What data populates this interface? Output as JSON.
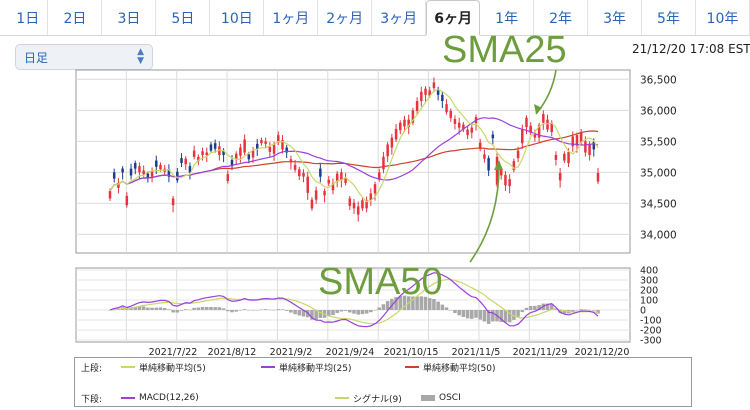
{
  "tabs": [
    {
      "label": "1日"
    },
    {
      "label": "2日"
    },
    {
      "label": "3日"
    },
    {
      "label": "5日"
    },
    {
      "label": "10日"
    },
    {
      "label": "1ヶ月"
    },
    {
      "label": "2ヶ月"
    },
    {
      "label": "3ヶ月"
    },
    {
      "label": "6ヶ月",
      "active": true
    },
    {
      "label": "1年"
    },
    {
      "label": "2年"
    },
    {
      "label": "3年"
    },
    {
      "label": "5年"
    },
    {
      "label": "10年"
    }
  ],
  "period_select": {
    "value": "日足",
    "icon": "chevron-updown-icon"
  },
  "timestamp": "21/12/20 17:08 EST",
  "annotations": {
    "sma25": "SMA25",
    "sma50": "SMA50",
    "color": "#6e9d3e"
  },
  "colors": {
    "up": "#e8323c",
    "down": "#1c3c8c",
    "sma5": "#c8d86a",
    "sma25": "#9b40d9",
    "sma50": "#d0402a",
    "macd": "#9b40d9",
    "signal": "#c8d86a",
    "osci": "#a8a8a8",
    "tab_link": "#2a63b8"
  },
  "legend": {
    "upper_label": "上段:",
    "lower_label": "下段:",
    "upper": [
      {
        "name": "単純移動平均(5)",
        "color": "#c8d86a"
      },
      {
        "name": "単純移動平均(25)",
        "color": "#9b40d9"
      },
      {
        "name": "単純移動平均(50)",
        "color": "#d0402a"
      }
    ],
    "lower": [
      {
        "name": "MACD(12,26)",
        "color": "#9b40d9"
      },
      {
        "name": "シグナル(9)",
        "color": "#c8d86a"
      },
      {
        "name": "OSCI",
        "color": "#a8a8a8"
      }
    ]
  },
  "chart_data": {
    "type": "candlestick",
    "price_axis": {
      "ticks": [
        34000,
        34500,
        35000,
        35500,
        36000,
        36500
      ],
      "range": [
        33700,
        36650
      ]
    },
    "osc_axis": {
      "ticks": [
        400,
        300,
        200,
        100,
        0,
        -100,
        -200,
        -300
      ],
      "range": [
        -320,
        420
      ]
    },
    "date_labels": [
      "2021/7/22",
      "2021/8/12",
      "2021/9/2",
      "2021/9/24",
      "2021/10/15",
      "2021/11/5",
      "2021/11/29",
      "2021/12/20"
    ],
    "close": [
      34700,
      34900,
      34830,
      35000,
      34620,
      34950,
      35060,
      35100,
      35030,
      34900,
      35020,
      35090,
      35120,
      35060,
      34930,
      34580,
      34870,
      35150,
      35220,
      35000,
      35350,
      35250,
      35340,
      35320,
      35350,
      35380,
      35420,
      35280,
      34970,
      35100,
      35300,
      35400,
      35530,
      35210,
      35350,
      35380,
      35520,
      35500,
      35410,
      35450,
      35600,
      35520,
      35320,
      35210,
      35120,
      35050,
      34990,
      34930,
      34560,
      34710,
      34930,
      34700,
      34880,
      34820,
      34980,
      35000,
      34910,
      34580,
      34510,
      34450,
      34550,
      34550,
      34660,
      34810,
      35000,
      35250,
      35450,
      35560,
      35700,
      35800,
      35850,
      35850,
      36000,
      36150,
      36300,
      36350,
      36320,
      36450,
      36250,
      36150,
      36100,
      35990,
      35860,
      35800,
      35770,
      35690,
      35720,
      35890,
      35480,
      35290,
      35030,
      35550,
      35250,
      35050,
      34960,
      34890,
      35180,
      35350,
      35690,
      35880,
      35750,
      35610,
      35760,
      35940,
      35850,
      35800,
      35280,
      34990,
      35300,
      35330,
      35580,
      35600,
      35640,
      35500,
      35460,
      35370,
      34990
    ],
    "open_offsets": [
      -120,
      100,
      -80,
      60,
      -150,
      110,
      90,
      -100,
      -60,
      80,
      -90,
      100,
      -70,
      -50,
      120,
      -110,
      140,
      80,
      -90,
      100,
      -100,
      -70,
      -60,
      -40,
      100,
      90,
      -140,
      70,
      -110,
      100,
      -90,
      -130,
      -210,
      80,
      -110,
      80,
      -50,
      -40,
      -80,
      -150,
      -120,
      -150,
      80,
      -50,
      -80,
      -110,
      -60,
      -260,
      -140,
      -150,
      130,
      -70,
      -60,
      -110,
      -130,
      -130,
      -80,
      -120,
      -90,
      -130,
      -130,
      -130,
      -110,
      -150,
      -110,
      -200,
      -190,
      -160,
      -170,
      -120,
      -110,
      -120,
      -200,
      -160,
      -150,
      -100,
      -80,
      -90,
      90,
      100,
      -130,
      -110,
      -80,
      -80,
      -80,
      -90,
      -80,
      -100,
      -100,
      -70,
      200,
      60,
      -450,
      -100,
      -170,
      -110,
      -140,
      -120,
      -220,
      -150,
      -110,
      -50,
      -200,
      -140,
      -160,
      -150,
      -80,
      -120,
      -110,
      -180,
      -160,
      -170,
      -160,
      -180,
      -180,
      120,
      -140
    ],
    "sma5_last": 35460,
    "sma25_last": 35460,
    "sma50_last": 35380
  }
}
